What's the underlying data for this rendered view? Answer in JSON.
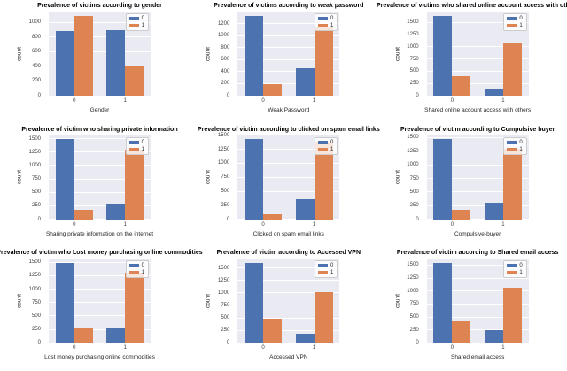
{
  "figure": {
    "background": "#ffffff"
  },
  "palette": {
    "series0": "#4c72b0",
    "series1": "#dd8452",
    "axes_bg": "#eaeaf2",
    "grid": "#ffffff",
    "title_text": "#000000",
    "tick_text": "#3c3c3c"
  },
  "chart_data": [
    {
      "type": "bar",
      "title": "Prevalence of victims according to gender",
      "xlabel": "Gender",
      "ylabel": "count",
      "categories": [
        "0",
        "1"
      ],
      "series": [
        {
          "name": "0",
          "values": [
            880,
            890
          ]
        },
        {
          "name": "1",
          "values": [
            1090,
            410
          ]
        }
      ],
      "yticks": [
        0,
        200,
        400,
        600,
        800,
        1000
      ],
      "ylim": [
        0,
        1150
      ],
      "legend_position": "upper right",
      "grid": true
    },
    {
      "type": "bar",
      "title": "Prevalence of victims according to weak password",
      "xlabel": "Weak Password",
      "ylabel": "count",
      "categories": [
        "0",
        "1"
      ],
      "series": [
        {
          "name": "0",
          "values": [
            1330,
            450
          ]
        },
        {
          "name": "1",
          "values": [
            185,
            1130
          ]
        }
      ],
      "yticks": [
        0,
        200,
        400,
        600,
        800,
        1000,
        1200
      ],
      "ylim": [
        0,
        1400
      ],
      "legend_position": "upper right",
      "grid": true
    },
    {
      "type": "bar",
      "title": "Prevalence of victims who shared online account access with others",
      "xlabel": "Shared online account access with others",
      "ylabel": "count",
      "categories": [
        "0",
        "1"
      ],
      "series": [
        {
          "name": "0",
          "values": [
            1640,
            140
          ]
        },
        {
          "name": "1",
          "values": [
            400,
            1090
          ]
        }
      ],
      "yticks": [
        0,
        250,
        500,
        750,
        1000,
        1250,
        1500
      ],
      "ylim": [
        0,
        1722
      ],
      "legend_position": "upper right",
      "grid": true
    },
    {
      "type": "bar",
      "title": "Prevalence of victim who sharing private information",
      "xlabel": "Sharing private information on the internet",
      "ylabel": "count",
      "categories": [
        "0",
        "1"
      ],
      "series": [
        {
          "name": "0",
          "values": [
            1490,
            290
          ]
        },
        {
          "name": "1",
          "values": [
            180,
            1300
          ]
        }
      ],
      "yticks": [
        0,
        250,
        500,
        750,
        1000,
        1250,
        1500
      ],
      "ylim": [
        0,
        1565
      ],
      "legend_position": "upper right",
      "grid": true
    },
    {
      "type": "bar",
      "title": "Prevalence of victim according to clicked on spam email links",
      "xlabel": "Clicked on spam email links",
      "ylabel": "count",
      "categories": [
        "0",
        "1"
      ],
      "series": [
        {
          "name": "0",
          "values": [
            1430,
            360
          ]
        },
        {
          "name": "1",
          "values": [
            90,
            1390
          ]
        }
      ],
      "yticks": [
        0,
        250,
        500,
        750,
        1000,
        1250,
        1500
      ],
      "ylim": [
        0,
        1502
      ],
      "legend_position": "upper right",
      "grid": true
    },
    {
      "type": "bar",
      "title": "Prevalence of victim according to Compulsive buyer",
      "xlabel": "Compulsive-buyer",
      "ylabel": "count",
      "categories": [
        "0",
        "1"
      ],
      "series": [
        {
          "name": "0",
          "values": [
            1470,
            310
          ]
        },
        {
          "name": "1",
          "values": [
            180,
            1300
          ]
        }
      ],
      "yticks": [
        0,
        250,
        500,
        750,
        1000,
        1250,
        1500
      ],
      "ylim": [
        0,
        1545
      ],
      "legend_position": "upper right",
      "grid": true
    },
    {
      "type": "bar",
      "title": "Prevalence of victim who Lost money purchasing online commodities",
      "xlabel": "Lost money purchasing online commodities",
      "ylabel": "count",
      "categories": [
        "0",
        "1"
      ],
      "series": [
        {
          "name": "0",
          "values": [
            1490,
            290
          ]
        },
        {
          "name": "1",
          "values": [
            280,
            1300
          ]
        }
      ],
      "yticks": [
        0,
        250,
        500,
        750,
        1000,
        1250,
        1500
      ],
      "ylim": [
        0,
        1565
      ],
      "legend_position": "upper right",
      "grid": true
    },
    {
      "type": "bar",
      "title": "Prevalence of victim according to Accessed VPN",
      "xlabel": "Accessed VPN",
      "ylabel": "count",
      "categories": [
        "0",
        "1"
      ],
      "series": [
        {
          "name": "0",
          "values": [
            1600,
            190
          ]
        },
        {
          "name": "1",
          "values": [
            490,
            1010
          ]
        }
      ],
      "yticks": [
        0,
        250,
        500,
        750,
        1000,
        1250,
        1500
      ],
      "ylim": [
        0,
        1680
      ],
      "legend_position": "upper right",
      "grid": true
    },
    {
      "type": "bar",
      "title": "Prevalence of victim according to Shared email access",
      "xlabel": "Shared email access",
      "ylabel": "count",
      "categories": [
        "0",
        "1"
      ],
      "series": [
        {
          "name": "0",
          "values": [
            1540,
            240
          ]
        },
        {
          "name": "1",
          "values": [
            430,
            1060
          ]
        }
      ],
      "yticks": [
        0,
        250,
        500,
        750,
        1000,
        1250,
        1500
      ],
      "ylim": [
        0,
        1620
      ],
      "legend_position": "upper right",
      "grid": true
    }
  ]
}
